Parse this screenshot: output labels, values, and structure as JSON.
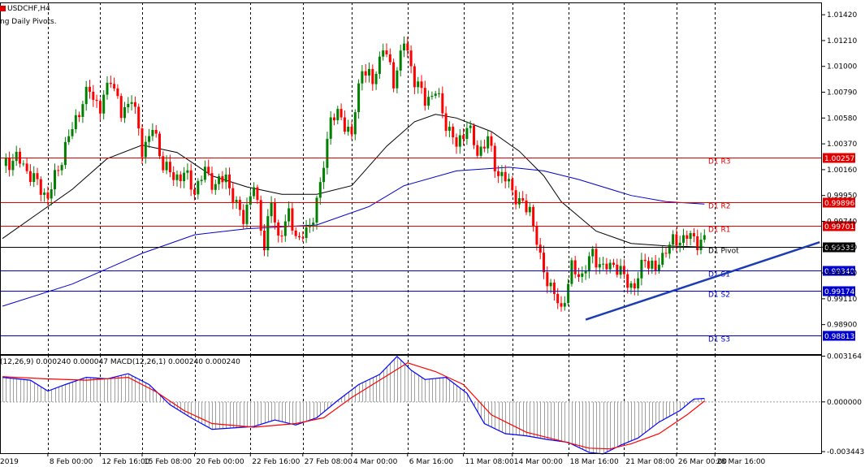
{
  "header": {
    "symbol_timeframe": "USDCHF,H4",
    "indicator_label": "ng Daily Pivots.",
    "macd_label": "(12,26,9) 0.000240 0.000047 MACD(12,26,1) 0.000240 0.000240"
  },
  "colors": {
    "bull": "#008000",
    "bear": "#ff0000",
    "sma_fast": "#000000",
    "sma_slow": "#0000c8",
    "resistance": "#e00000",
    "support": "#0000cc",
    "pivot": "#000000",
    "trendline": "#1a3cb4",
    "grid": "#000000"
  },
  "chart_data": [
    {
      "type": "candlestick",
      "title": "USDCHF,H4",
      "ylim": [
        0.9866,
        1.0152
      ],
      "y_ticks": [
        "1.01420",
        "1.01210",
        "1.01000",
        "1.00790",
        "1.00580",
        "1.00370",
        "1.00160",
        "0.99950",
        "0.99740",
        "0.99530",
        "0.99320",
        "0.99110",
        "0.98900"
      ],
      "x_ticks": [
        "2019",
        "8 Feb 00:00",
        "12 Feb 16:00",
        "15 Feb 08:00",
        "20 Feb 00:00",
        "22 Feb 16:00",
        "27 Feb 08:00",
        "4 Mar 00:00",
        "6 Mar 16:00",
        "11 Mar 08:00",
        "14 Mar 00:00",
        "18 Mar 16:00",
        "21 Mar 08:00",
        "26 Mar 00:00",
        "28 Mar 16:00"
      ],
      "price_path": [
        [
          0,
          1.0019
        ],
        [
          4,
          1.0026
        ],
        [
          8,
          1.0012
        ],
        [
          13,
          0.9993
        ],
        [
          17,
          1.0026
        ],
        [
          21,
          1.0058
        ],
        [
          25,
          1.0082
        ],
        [
          28,
          1.0064
        ],
        [
          31,
          1.0093
        ],
        [
          34,
          1.006
        ],
        [
          37,
          1.0076
        ],
        [
          40,
          1.0032
        ],
        [
          43,
          1.0049
        ],
        [
          46,
          1.0021
        ],
        [
          49,
          1.0009
        ],
        [
          52,
          1.0013
        ],
        [
          55,
          0.9999
        ],
        [
          58,
          1.0015
        ],
        [
          61,
          1.0003
        ],
        [
          64,
          1.0011
        ],
        [
          67,
          0.9985
        ],
        [
          69,
          0.9978
        ],
        [
          72,
          1.0002
        ],
        [
          75,
          0.9955
        ],
        [
          77,
          0.9989
        ],
        [
          79,
          0.9961
        ],
        [
          82,
          0.9978
        ],
        [
          85,
          0.9958
        ],
        [
          88,
          0.997
        ],
        [
          91,
          1.0001
        ],
        [
          94,
          1.006
        ],
        [
          97,
          1.0058
        ],
        [
          100,
          1.0044
        ],
        [
          103,
          1.0101
        ],
        [
          106,
          1.0086
        ],
        [
          109,
          1.0117
        ],
        [
          112,
          1.0088
        ],
        [
          115,
          1.012
        ],
        [
          118,
          1.009
        ],
        [
          121,
          1.0072
        ],
        [
          124,
          1.008
        ],
        [
          127,
          1.0054
        ],
        [
          130,
          1.0035
        ],
        [
          133,
          1.0052
        ],
        [
          136,
          1.003
        ],
        [
          139,
          1.004
        ],
        [
          142,
          1.0012
        ],
        [
          145,
          1.0006
        ],
        [
          148,
          0.9988
        ],
        [
          151,
          0.9985
        ],
        [
          154,
          0.9942
        ],
        [
          157,
          0.992
        ],
        [
          160,
          0.9902
        ],
        [
          163,
          0.9935
        ],
        [
          166,
          0.993
        ],
        [
          169,
          0.9948
        ],
        [
          172,
          0.9935
        ],
        [
          175,
          0.994
        ],
        [
          178,
          0.9928
        ],
        [
          181,
          0.992
        ],
        [
          184,
          0.9945
        ],
        [
          187,
          0.9933
        ],
        [
          190,
          0.9953
        ],
        [
          193,
          0.9958
        ],
        [
          196,
          0.9962
        ],
        [
          199,
          0.9958
        ],
        [
          201,
          0.9958
        ]
      ],
      "sma_fast": [
        [
          0,
          0.996
        ],
        [
          10,
          0.998
        ],
        [
          20,
          1.0
        ],
        [
          30,
          1.0025
        ],
        [
          40,
          1.0036
        ],
        [
          50,
          1.003
        ],
        [
          60,
          1.0011
        ],
        [
          70,
          1.0002
        ],
        [
          80,
          0.9996
        ],
        [
          90,
          0.9996
        ],
        [
          100,
          1.0003
        ],
        [
          110,
          1.0035
        ],
        [
          118,
          1.0055
        ],
        [
          124,
          1.0061
        ],
        [
          130,
          1.0058
        ],
        [
          140,
          1.0047
        ],
        [
          148,
          1.0031
        ],
        [
          155,
          1.0011
        ],
        [
          160,
          0.999
        ],
        [
          170,
          0.9966
        ],
        [
          180,
          0.9956
        ],
        [
          190,
          0.9954
        ],
        [
          201,
          0.9953
        ]
      ],
      "sma_slow": [
        [
          0,
          0.9905
        ],
        [
          20,
          0.9923
        ],
        [
          40,
          0.9948
        ],
        [
          55,
          0.9963
        ],
        [
          70,
          0.9968
        ],
        [
          90,
          0.9971
        ],
        [
          105,
          0.9986
        ],
        [
          115,
          1.0003
        ],
        [
          130,
          1.0015
        ],
        [
          145,
          1.0018
        ],
        [
          155,
          1.0015
        ],
        [
          165,
          1.0008
        ],
        [
          180,
          0.9995
        ],
        [
          190,
          0.999
        ],
        [
          201,
          0.9988
        ]
      ],
      "pivots": [
        {
          "label": "D1 R3",
          "value": 1.00257,
          "price_tag": "1.00257",
          "kind": "resistance"
        },
        {
          "label": "D1 R2",
          "value": 0.99896,
          "price_tag": "0.99896",
          "kind": "resistance"
        },
        {
          "label": "D1 R1",
          "value": 0.99701,
          "price_tag": "0.99701",
          "kind": "resistance"
        },
        {
          "label": "D1 Pivot",
          "value": 0.99535,
          "price_tag": "0.99535",
          "kind": "pivot"
        },
        {
          "label": "D1 S1",
          "value": 0.9934,
          "price_tag": "0.99340",
          "kind": "support"
        },
        {
          "label": "D1 S2",
          "value": 0.99174,
          "price_tag": "0.99174",
          "kind": "support"
        },
        {
          "label": "D1 S3",
          "value": 0.98813,
          "price_tag": "0.98813",
          "kind": "support"
        }
      ],
      "trendline": [
        [
          167,
          0.9894
        ],
        [
          234,
          0.9957
        ]
      ],
      "sma_types": [
        "SMA 50",
        "SMA 200"
      ]
    },
    {
      "type": "macd",
      "ylim": [
        -0.00355,
        0.00325
      ],
      "y_ticks": [
        "0.003164",
        "0.000000",
        "-0.003443"
      ],
      "macd": [
        [
          0,
          0.0017
        ],
        [
          8,
          0.0015
        ],
        [
          13,
          0.00075
        ],
        [
          18,
          0.0012
        ],
        [
          24,
          0.0017
        ],
        [
          30,
          0.0016
        ],
        [
          36,
          0.00195
        ],
        [
          42,
          0.0012
        ],
        [
          48,
          -0.0002
        ],
        [
          54,
          -0.0011
        ],
        [
          60,
          -0.0019
        ],
        [
          66,
          -0.0018
        ],
        [
          72,
          -0.0017
        ],
        [
          78,
          -0.00125
        ],
        [
          84,
          -0.0016
        ],
        [
          90,
          -0.0011
        ],
        [
          96,
          0.0001
        ],
        [
          102,
          0.0012
        ],
        [
          108,
          0.0019
        ],
        [
          113,
          0.00315
        ],
        [
          117,
          0.0022
        ],
        [
          121,
          0.00155
        ],
        [
          127,
          0.0017
        ],
        [
          133,
          0.0006
        ],
        [
          138,
          -0.0015
        ],
        [
          144,
          -0.0022
        ],
        [
          150,
          -0.00235
        ],
        [
          156,
          -0.0026
        ],
        [
          162,
          -0.0028
        ],
        [
          168,
          -0.0035
        ],
        [
          172,
          -0.0036
        ],
        [
          177,
          -0.003
        ],
        [
          182,
          -0.0025
        ],
        [
          188,
          -0.0014
        ],
        [
          194,
          -0.0006
        ],
        [
          198,
          0.0002
        ],
        [
          201,
          0.00024
        ]
      ],
      "signal": [
        [
          0,
          0.00175
        ],
        [
          12,
          0.0016
        ],
        [
          24,
          0.0015
        ],
        [
          36,
          0.0017
        ],
        [
          44,
          0.0007
        ],
        [
          52,
          -0.0006
        ],
        [
          60,
          -0.0015
        ],
        [
          72,
          -0.00175
        ],
        [
          84,
          -0.0015
        ],
        [
          92,
          -0.0011
        ],
        [
          100,
          0.0003
        ],
        [
          108,
          0.0015
        ],
        [
          116,
          0.0027
        ],
        [
          124,
          0.0021
        ],
        [
          132,
          0.0012
        ],
        [
          140,
          -0.0009
        ],
        [
          150,
          -0.0021
        ],
        [
          160,
          -0.0027
        ],
        [
          168,
          -0.0032
        ],
        [
          174,
          -0.00325
        ],
        [
          180,
          -0.0029
        ],
        [
          188,
          -0.0022
        ],
        [
          196,
          -0.0009
        ],
        [
          201,
          5e-05
        ]
      ],
      "histogram_series": "MACD(12,26,1)"
    }
  ]
}
